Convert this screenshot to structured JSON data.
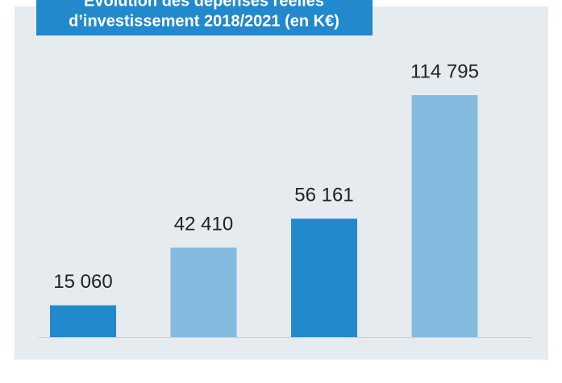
{
  "chart_data": {
    "type": "bar",
    "title": [
      "Évolution des dépenses réelles",
      "d’investissement 2018/2021 (en K€)"
    ],
    "values": [
      15060,
      42410,
      56161,
      114795
    ],
    "value_labels": [
      "15 060",
      "42 410",
      "56 161",
      "114 795"
    ],
    "colors": [
      "#2289cc",
      "#85badf",
      "#2289cc",
      "#85badf"
    ]
  }
}
